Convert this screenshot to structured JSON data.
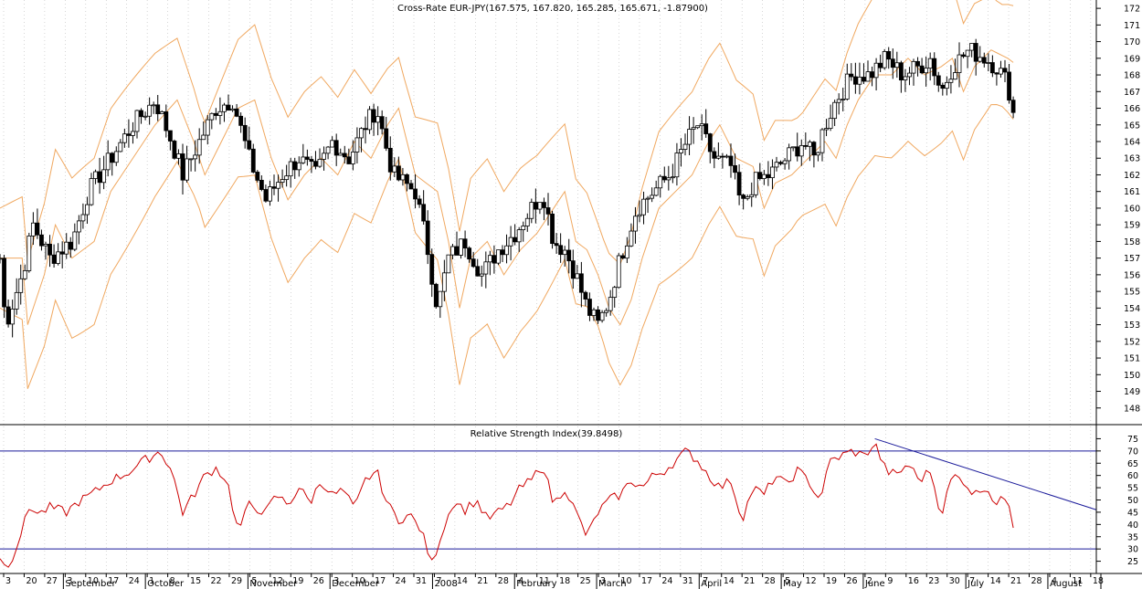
{
  "price_panel": {
    "title": "Cross-Rate  EUR-JPY(167.575, 167.820, 165.285, 165.671, -1.87900)"
  },
  "rsi_panel": {
    "title": "Relative Strength Index(39.8498)"
  },
  "colors": {
    "candle": "#000000",
    "bollinger": "#f0a860",
    "rsi": "#cc0000",
    "rsi_levels": "#1a1a9a",
    "trendline": "#1a1a9a",
    "grid": "#bbbbbb"
  },
  "chart_data": [
    {
      "type": "candlestick",
      "title": "Cross-Rate  EUR-JPY(167.575, 167.820, 165.285, 165.671, -1.87900)",
      "overlay": "Bollinger Bands",
      "ylim": [
        147,
        172.5
      ],
      "yticks": [
        148,
        149,
        150,
        151,
        152,
        153,
        154,
        155,
        156,
        157,
        158,
        159,
        160,
        161,
        162,
        163,
        164,
        165,
        166,
        167,
        168,
        169,
        170,
        171,
        172
      ],
      "close_series": [
        {
          "t": 0,
          "c": 157
        },
        {
          "t": 2,
          "c": 153
        },
        {
          "t": 4,
          "c": 154
        },
        {
          "t": 8,
          "c": 156
        },
        {
          "t": 12,
          "c": 159
        },
        {
          "t": 18,
          "c": 157
        },
        {
          "t": 26,
          "c": 158
        },
        {
          "t": 32,
          "c": 161
        },
        {
          "t": 40,
          "c": 163
        },
        {
          "t": 48,
          "c": 165
        },
        {
          "t": 56,
          "c": 166.5
        },
        {
          "t": 62,
          "c": 164
        },
        {
          "t": 66,
          "c": 162
        },
        {
          "t": 72,
          "c": 164
        },
        {
          "t": 78,
          "c": 166
        },
        {
          "t": 84,
          "c": 166.5
        },
        {
          "t": 90,
          "c": 163
        },
        {
          "t": 96,
          "c": 160.5
        },
        {
          "t": 102,
          "c": 162
        },
        {
          "t": 108,
          "c": 163
        },
        {
          "t": 114,
          "c": 162
        },
        {
          "t": 120,
          "c": 164
        },
        {
          "t": 126,
          "c": 163
        },
        {
          "t": 132,
          "c": 165
        },
        {
          "t": 136,
          "c": 166
        },
        {
          "t": 142,
          "c": 162
        },
        {
          "t": 150,
          "c": 161
        },
        {
          "t": 154,
          "c": 158
        },
        {
          "t": 158,
          "c": 154
        },
        {
          "t": 162,
          "c": 157
        },
        {
          "t": 168,
          "c": 158
        },
        {
          "t": 174,
          "c": 156
        },
        {
          "t": 180,
          "c": 157.5
        },
        {
          "t": 186,
          "c": 158.5
        },
        {
          "t": 192,
          "c": 160
        },
        {
          "t": 196,
          "c": 161
        },
        {
          "t": 200,
          "c": 158
        },
        {
          "t": 204,
          "c": 157.5
        },
        {
          "t": 208,
          "c": 156
        },
        {
          "t": 212,
          "c": 154
        },
        {
          "t": 216,
          "c": 153
        },
        {
          "t": 220,
          "c": 154.5
        },
        {
          "t": 224,
          "c": 157
        },
        {
          "t": 230,
          "c": 160
        },
        {
          "t": 236,
          "c": 161
        },
        {
          "t": 242,
          "c": 162
        },
        {
          "t": 248,
          "c": 164
        },
        {
          "t": 252,
          "c": 165
        },
        {
          "t": 258,
          "c": 163
        },
        {
          "t": 264,
          "c": 162.5
        },
        {
          "t": 268,
          "c": 160
        },
        {
          "t": 272,
          "c": 161.5
        },
        {
          "t": 278,
          "c": 162
        },
        {
          "t": 284,
          "c": 163
        },
        {
          "t": 290,
          "c": 164
        },
        {
          "t": 294,
          "c": 163
        },
        {
          "t": 298,
          "c": 165
        },
        {
          "t": 302,
          "c": 166.5
        },
        {
          "t": 308,
          "c": 168
        },
        {
          "t": 314,
          "c": 168
        },
        {
          "t": 320,
          "c": 169
        },
        {
          "t": 326,
          "c": 168
        },
        {
          "t": 332,
          "c": 168.5
        },
        {
          "t": 336,
          "c": 169
        },
        {
          "t": 340,
          "c": 167
        },
        {
          "t": 344,
          "c": 168.5
        },
        {
          "t": 350,
          "c": 169.5
        },
        {
          "t": 356,
          "c": 169
        },
        {
          "t": 360,
          "c": 168.5
        },
        {
          "t": 364,
          "c": 167.5
        },
        {
          "t": 366,
          "c": 165.7
        }
      ]
    },
    {
      "type": "line",
      "title": "Relative Strength Index(39.8498)",
      "ylim": [
        20,
        80
      ],
      "yticks": [
        25,
        30,
        35,
        40,
        45,
        50,
        55,
        60,
        65,
        70,
        75
      ],
      "levels": [
        30,
        70
      ],
      "series": [
        {
          "values": [
            {
              "t": 0,
              "v": 27
            },
            {
              "t": 2,
              "v": 22
            },
            {
              "t": 5,
              "v": 28
            },
            {
              "t": 8,
              "v": 38
            },
            {
              "t": 11,
              "v": 48
            },
            {
              "t": 14,
              "v": 44
            },
            {
              "t": 18,
              "v": 47
            },
            {
              "t": 24,
              "v": 45
            },
            {
              "t": 28,
              "v": 49
            },
            {
              "t": 34,
              "v": 53
            },
            {
              "t": 40,
              "v": 58
            },
            {
              "t": 46,
              "v": 61
            },
            {
              "t": 52,
              "v": 66
            },
            {
              "t": 58,
              "v": 70
            },
            {
              "t": 62,
              "v": 62
            },
            {
              "t": 66,
              "v": 45
            },
            {
              "t": 70,
              "v": 52
            },
            {
              "t": 74,
              "v": 60
            },
            {
              "t": 78,
              "v": 63
            },
            {
              "t": 82,
              "v": 58
            },
            {
              "t": 86,
              "v": 37
            },
            {
              "t": 90,
              "v": 48
            },
            {
              "t": 96,
              "v": 45
            },
            {
              "t": 100,
              "v": 52
            },
            {
              "t": 104,
              "v": 48
            },
            {
              "t": 108,
              "v": 55
            },
            {
              "t": 112,
              "v": 49
            },
            {
              "t": 116,
              "v": 58
            },
            {
              "t": 120,
              "v": 52
            },
            {
              "t": 124,
              "v": 54
            },
            {
              "t": 128,
              "v": 46
            },
            {
              "t": 132,
              "v": 58
            },
            {
              "t": 136,
              "v": 62
            },
            {
              "t": 140,
              "v": 48
            },
            {
              "t": 144,
              "v": 42
            },
            {
              "t": 148,
              "v": 44
            },
            {
              "t": 152,
              "v": 38
            },
            {
              "t": 156,
              "v": 24
            },
            {
              "t": 160,
              "v": 38
            },
            {
              "t": 164,
              "v": 50
            },
            {
              "t": 168,
              "v": 46
            },
            {
              "t": 172,
              "v": 50
            },
            {
              "t": 176,
              "v": 42
            },
            {
              "t": 180,
              "v": 45
            },
            {
              "t": 184,
              "v": 48
            },
            {
              "t": 188,
              "v": 55
            },
            {
              "t": 192,
              "v": 58
            },
            {
              "t": 196,
              "v": 65
            },
            {
              "t": 200,
              "v": 48
            },
            {
              "t": 204,
              "v": 55
            },
            {
              "t": 208,
              "v": 45
            },
            {
              "t": 212,
              "v": 35
            },
            {
              "t": 216,
              "v": 45
            },
            {
              "t": 220,
              "v": 50
            },
            {
              "t": 224,
              "v": 52
            },
            {
              "t": 228,
              "v": 58
            },
            {
              "t": 232,
              "v": 55
            },
            {
              "t": 236,
              "v": 60
            },
            {
              "t": 240,
              "v": 62
            },
            {
              "t": 244,
              "v": 66
            },
            {
              "t": 248,
              "v": 70
            },
            {
              "t": 252,
              "v": 66
            },
            {
              "t": 256,
              "v": 60
            },
            {
              "t": 260,
              "v": 55
            },
            {
              "t": 264,
              "v": 58
            },
            {
              "t": 268,
              "v": 42
            },
            {
              "t": 272,
              "v": 55
            },
            {
              "t": 276,
              "v": 52
            },
            {
              "t": 280,
              "v": 60
            },
            {
              "t": 284,
              "v": 56
            },
            {
              "t": 288,
              "v": 62
            },
            {
              "t": 292,
              "v": 58
            },
            {
              "t": 296,
              "v": 50
            },
            {
              "t": 300,
              "v": 66
            },
            {
              "t": 304,
              "v": 68
            },
            {
              "t": 308,
              "v": 70
            },
            {
              "t": 312,
              "v": 68
            },
            {
              "t": 316,
              "v": 73
            },
            {
              "t": 320,
              "v": 62
            },
            {
              "t": 324,
              "v": 60
            },
            {
              "t": 328,
              "v": 65
            },
            {
              "t": 332,
              "v": 58
            },
            {
              "t": 336,
              "v": 62
            },
            {
              "t": 340,
              "v": 44
            },
            {
              "t": 344,
              "v": 60
            },
            {
              "t": 348,
              "v": 58
            },
            {
              "t": 352,
              "v": 52
            },
            {
              "t": 356,
              "v": 56
            },
            {
              "t": 360,
              "v": 48
            },
            {
              "t": 364,
              "v": 52
            },
            {
              "t": 366,
              "v": 40
            }
          ]
        }
      ],
      "trendline": [
        {
          "t": 316,
          "v": 75
        },
        {
          "t": 396,
          "v": 46
        }
      ]
    }
  ],
  "x_axis": {
    "day_labels": [
      "3",
      "20",
      "27",
      "3",
      "10",
      "17",
      "24",
      "1",
      "8",
      "15",
      "22",
      "29",
      "5",
      "12",
      "19",
      "26",
      "3",
      "10",
      "17",
      "24",
      "31",
      "7",
      "14",
      "21",
      "28",
      "4",
      "11",
      "18",
      "25",
      "3",
      "10",
      "17",
      "24",
      "31",
      "7",
      "14",
      "21",
      "28",
      "5",
      "12",
      "19",
      "26",
      "2",
      "9",
      "16",
      "23",
      "30",
      "7",
      "14",
      "21",
      "28",
      "4",
      "11",
      "18"
    ],
    "months": [
      {
        "label": "September",
        "day_index": 3
      },
      {
        "label": "October",
        "day_index": 7
      },
      {
        "label": "November",
        "day_index": 12
      },
      {
        "label": "December",
        "day_index": 16
      },
      {
        "label": "2008",
        "day_index": 21
      },
      {
        "label": "February",
        "day_index": 25
      },
      {
        "label": "March",
        "day_index": 29
      },
      {
        "label": "April",
        "day_index": 34
      },
      {
        "label": "May",
        "day_index": 38
      },
      {
        "label": "June",
        "day_index": 42
      },
      {
        "label": "July",
        "day_index": 47
      },
      {
        "label": "August",
        "day_index": 51
      }
    ]
  }
}
